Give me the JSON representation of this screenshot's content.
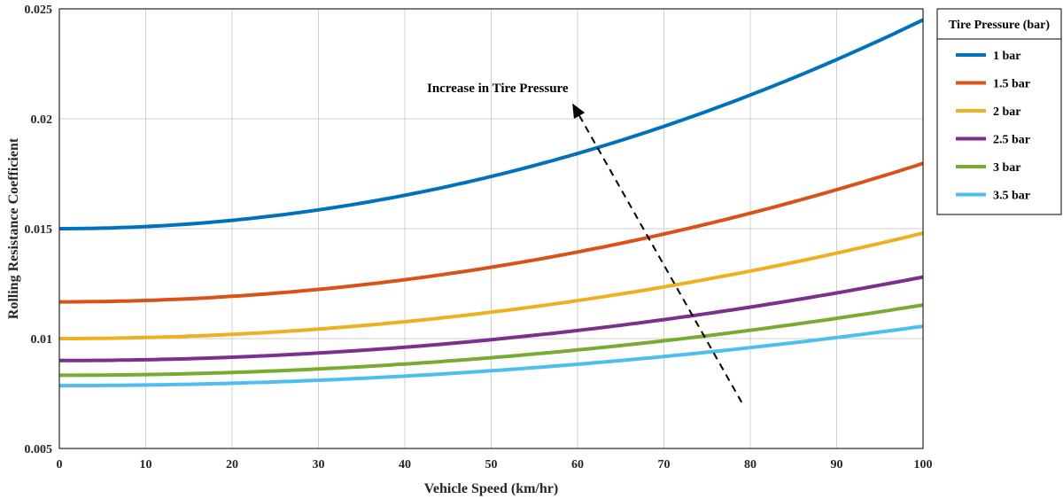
{
  "chart_data": {
    "type": "line",
    "xlabel": "Vehicle Speed (km/hr)",
    "ylabel": "Rolling Resistance Coefficient",
    "xlim": [
      0,
      100
    ],
    "ylim": [
      0.005,
      0.025
    ],
    "xticks": [
      "0",
      "10",
      "20",
      "30",
      "40",
      "50",
      "60",
      "70",
      "80",
      "90",
      "100"
    ],
    "yticks": [
      "0.005",
      "0.01",
      "0.015",
      "0.02",
      "0.025"
    ],
    "grid": true,
    "legend_title": "Tire Pressure (bar)",
    "legend_position": "outside-top-right",
    "annotation": "Increase in Tire Pressure",
    "series": [
      {
        "name": "1 bar",
        "color": "#0072BD",
        "x0": 0.015,
        "k": 9.5e-07
      },
      {
        "name": "1.5 bar",
        "color": "#D95319",
        "x0": 0.01167,
        "k": 6.3e-07
      },
      {
        "name": "2 bar",
        "color": "#EDB120",
        "x0": 0.01,
        "k": 4.8e-07
      },
      {
        "name": "2.5 bar",
        "color": "#7E2F8E",
        "x0": 0.009,
        "k": 3.8e-07
      },
      {
        "name": "3 bar",
        "color": "#77AC30",
        "x0": 0.00833,
        "k": 3.2e-07
      },
      {
        "name": "3.5 bar",
        "color": "#4DBEEE",
        "x0": 0.00786,
        "k": 2.7e-07
      }
    ]
  }
}
